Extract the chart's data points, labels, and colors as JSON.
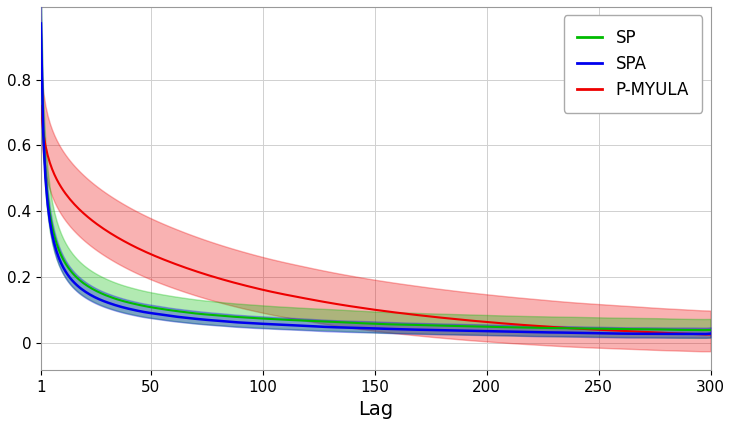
{
  "title": "",
  "xlabel": "Lag",
  "ylabel": "",
  "xlim": [
    1,
    300
  ],
  "ylim": [
    -0.08,
    1.02
  ],
  "yticks": [
    0,
    0.2,
    0.4,
    0.6,
    0.8
  ],
  "xticks": [
    1,
    50,
    100,
    150,
    200,
    250,
    300
  ],
  "sp_color": "#00bb00",
  "spa_color": "#0000ee",
  "pmyula_color": "#ee0000",
  "sp_alpha": 0.3,
  "spa_alpha": 0.3,
  "pmyula_alpha": 0.3,
  "figsize": [
    7.32,
    4.26
  ],
  "dpi": 100,
  "legend_labels": [
    "SP",
    "SPA",
    "P-MYULA"
  ],
  "background_color": "#ffffff",
  "grid_color": "#d0d0d0"
}
